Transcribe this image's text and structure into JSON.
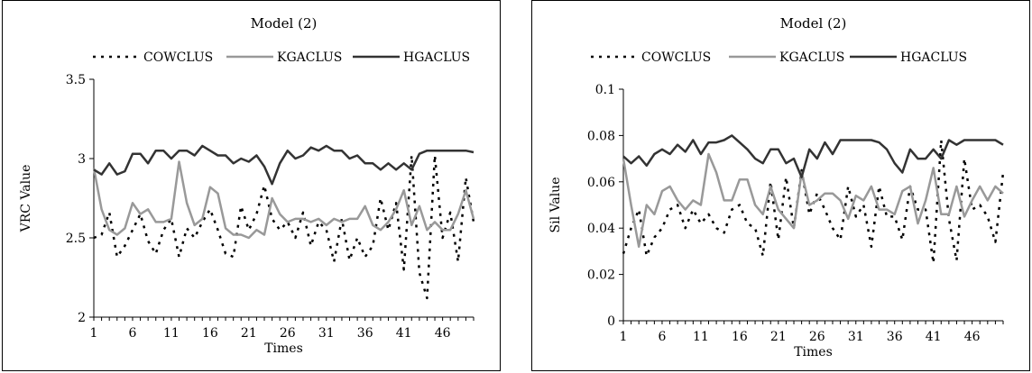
{
  "chart_data": [
    {
      "type": "line",
      "title": "Model (2)",
      "xlabel": "Times",
      "ylabel": "VRC Value",
      "ylim": [
        2,
        3.5
      ],
      "yticks": [
        "2",
        "2.5",
        "3",
        "3.5"
      ],
      "xticks": [
        "1",
        "6",
        "11",
        "16",
        "21",
        "26",
        "31",
        "36",
        "41",
        "46"
      ],
      "legend_position": "top",
      "grid": false,
      "x": [
        1,
        2,
        3,
        4,
        5,
        6,
        7,
        8,
        9,
        10,
        11,
        12,
        13,
        14,
        15,
        16,
        17,
        18,
        19,
        20,
        21,
        22,
        23,
        24,
        25,
        26,
        27,
        28,
        29,
        30,
        31,
        32,
        33,
        34,
        35,
        36,
        37,
        38,
        39,
        40,
        41,
        42,
        43,
        44,
        45,
        46,
        47,
        48,
        49,
        50
      ],
      "series": [
        {
          "name": "COWCLUS",
          "style": "dotted",
          "color": "#000000",
          "values": [
            2.5,
            2.52,
            2.66,
            2.38,
            2.45,
            2.55,
            2.65,
            2.48,
            2.4,
            2.55,
            2.62,
            2.38,
            2.56,
            2.5,
            2.6,
            2.68,
            2.55,
            2.4,
            2.38,
            2.7,
            2.55,
            2.65,
            2.83,
            2.62,
            2.55,
            2.6,
            2.5,
            2.66,
            2.45,
            2.6,
            2.55,
            2.35,
            2.62,
            2.36,
            2.5,
            2.38,
            2.45,
            2.75,
            2.55,
            2.72,
            2.3,
            3.02,
            2.28,
            2.12,
            3.02,
            2.5,
            2.66,
            2.35,
            2.88,
            2.6
          ]
        },
        {
          "name": "KGACLUS",
          "style": "solid",
          "color": "#999999",
          "values": [
            2.94,
            2.68,
            2.55,
            2.52,
            2.56,
            2.72,
            2.65,
            2.68,
            2.6,
            2.6,
            2.62,
            2.98,
            2.72,
            2.58,
            2.62,
            2.82,
            2.78,
            2.56,
            2.52,
            2.52,
            2.5,
            2.55,
            2.52,
            2.75,
            2.65,
            2.6,
            2.62,
            2.62,
            2.6,
            2.62,
            2.58,
            2.62,
            2.6,
            2.62,
            2.62,
            2.7,
            2.58,
            2.55,
            2.6,
            2.68,
            2.8,
            2.58,
            2.7,
            2.55,
            2.6,
            2.55,
            2.55,
            2.65,
            2.8,
            2.62
          ]
        },
        {
          "name": "HGACLUS",
          "style": "solid",
          "color": "#333333",
          "values": [
            2.93,
            2.9,
            2.97,
            2.9,
            2.92,
            3.03,
            3.03,
            2.97,
            3.05,
            3.05,
            3.0,
            3.05,
            3.05,
            3.02,
            3.08,
            3.05,
            3.02,
            3.02,
            2.97,
            3.0,
            2.98,
            3.02,
            2.95,
            2.84,
            2.97,
            3.05,
            3.0,
            3.02,
            3.07,
            3.05,
            3.08,
            3.05,
            3.05,
            3.0,
            3.02,
            2.97,
            2.97,
            2.93,
            2.97,
            2.93,
            2.97,
            2.93,
            3.03,
            3.05,
            3.05,
            3.05,
            3.05,
            3.05,
            3.05,
            3.04
          ]
        }
      ]
    },
    {
      "type": "line",
      "title": "Model (2)",
      "xlabel": "Times",
      "ylabel": "Sil Value",
      "ylim": [
        0,
        0.1
      ],
      "yticks": [
        "0",
        "0.02",
        "0.04",
        "0.06",
        "0.08",
        "0.1"
      ],
      "xticks": [
        "1",
        "6",
        "11",
        "16",
        "21",
        "26",
        "31",
        "36",
        "41",
        "46"
      ],
      "legend_position": "top",
      "grid": false,
      "x": [
        1,
        2,
        3,
        4,
        5,
        6,
        7,
        8,
        9,
        10,
        11,
        12,
        13,
        14,
        15,
        16,
        17,
        18,
        19,
        20,
        21,
        22,
        23,
        24,
        25,
        26,
        27,
        28,
        29,
        30,
        31,
        32,
        33,
        34,
        35,
        36,
        37,
        38,
        39,
        40,
        41,
        42,
        43,
        44,
        45,
        46,
        47,
        48,
        49,
        50
      ],
      "series": [
        {
          "name": "COWCLUS",
          "style": "dotted",
          "color": "#000000",
          "values": [
            0.029,
            0.04,
            0.048,
            0.028,
            0.036,
            0.04,
            0.048,
            0.05,
            0.04,
            0.048,
            0.042,
            0.046,
            0.04,
            0.038,
            0.048,
            0.05,
            0.042,
            0.04,
            0.028,
            0.06,
            0.035,
            0.062,
            0.04,
            0.065,
            0.046,
            0.055,
            0.048,
            0.04,
            0.035,
            0.058,
            0.045,
            0.05,
            0.032,
            0.058,
            0.045,
            0.045,
            0.035,
            0.058,
            0.048,
            0.048,
            0.025,
            0.078,
            0.044,
            0.026,
            0.07,
            0.048,
            0.05,
            0.045,
            0.034,
            0.064
          ]
        },
        {
          "name": "KGACLUS",
          "style": "solid",
          "color": "#999999",
          "values": [
            0.07,
            0.05,
            0.032,
            0.05,
            0.046,
            0.056,
            0.058,
            0.052,
            0.048,
            0.052,
            0.05,
            0.072,
            0.064,
            0.052,
            0.052,
            0.061,
            0.061,
            0.05,
            0.046,
            0.058,
            0.048,
            0.044,
            0.04,
            0.064,
            0.05,
            0.052,
            0.055,
            0.055,
            0.052,
            0.044,
            0.054,
            0.052,
            0.058,
            0.048,
            0.048,
            0.046,
            0.056,
            0.058,
            0.042,
            0.052,
            0.066,
            0.046,
            0.046,
            0.058,
            0.045,
            0.052,
            0.058,
            0.052,
            0.058,
            0.055
          ]
        },
        {
          "name": "HGACLUS",
          "style": "solid",
          "color": "#333333",
          "values": [
            0.071,
            0.068,
            0.071,
            0.067,
            0.072,
            0.074,
            0.072,
            0.076,
            0.073,
            0.078,
            0.072,
            0.077,
            0.077,
            0.078,
            0.08,
            0.077,
            0.074,
            0.07,
            0.068,
            0.074,
            0.074,
            0.068,
            0.07,
            0.062,
            0.074,
            0.07,
            0.077,
            0.072,
            0.078,
            0.078,
            0.078,
            0.078,
            0.078,
            0.077,
            0.074,
            0.068,
            0.064,
            0.074,
            0.07,
            0.07,
            0.074,
            0.07,
            0.078,
            0.076,
            0.078,
            0.078,
            0.078,
            0.078,
            0.078,
            0.076
          ]
        }
      ]
    }
  ]
}
